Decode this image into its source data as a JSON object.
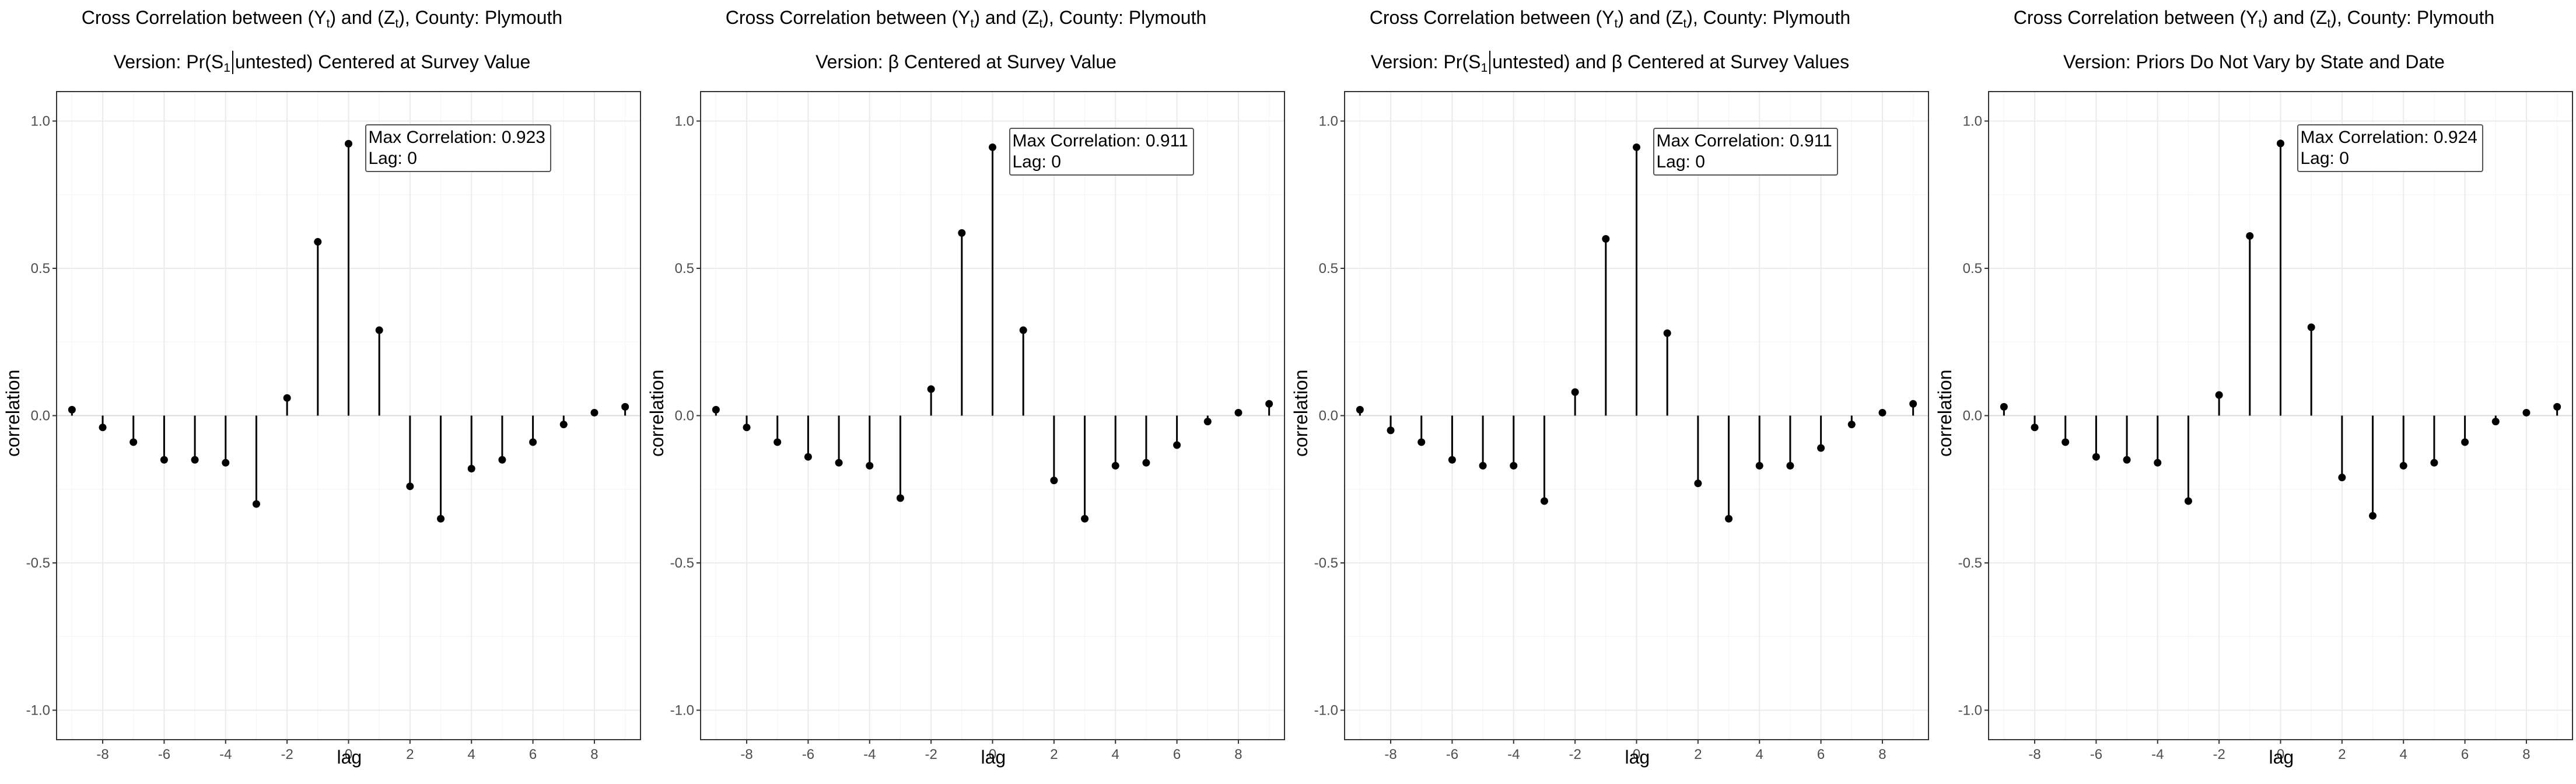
{
  "chart_data": [
    {
      "type": "lollipop",
      "title_parts": [
        "Cross Correlation between (Y",
        "t",
        ") and (Z",
        "t",
        "), County: Plymouth"
      ],
      "subtitle_parts": [
        "Version: Pr(S",
        "1",
        "untested) Centered at Survey Value"
      ],
      "xlabel": "lag",
      "ylabel": "correlation",
      "xlim": [
        -9.5,
        9.5
      ],
      "ylim": [
        -1.1,
        1.1
      ],
      "x_ticks": [
        "-8",
        "-6",
        "-4",
        "-2",
        "0",
        "2",
        "4",
        "6",
        "8"
      ],
      "y_ticks": [
        "-1.0",
        "-0.5",
        "0.0",
        "0.5",
        "1.0"
      ],
      "x": [
        -9,
        -8,
        -7,
        -6,
        -5,
        -4,
        -3,
        -2,
        -1,
        0,
        1,
        2,
        3,
        4,
        5,
        6,
        7,
        8,
        9
      ],
      "values": [
        0.02,
        -0.04,
        -0.09,
        -0.15,
        -0.15,
        -0.16,
        -0.3,
        0.06,
        0.59,
        0.923,
        0.29,
        -0.24,
        -0.35,
        -0.18,
        -0.15,
        -0.09,
        -0.03,
        0.01,
        0.03
      ],
      "annotation": {
        "line1": "Max Correlation: 0.923",
        "line2": "Lag: 0"
      }
    },
    {
      "type": "lollipop",
      "title_parts": [
        "Cross Correlation between (Y",
        "t",
        ") and (Z",
        "t",
        "), County: Plymouth"
      ],
      "subtitle_parts": [
        "Version: β Centered at Survey Value"
      ],
      "xlabel": "lag",
      "ylabel": "correlation",
      "xlim": [
        -9.5,
        9.5
      ],
      "ylim": [
        -1.1,
        1.1
      ],
      "x_ticks": [
        "-8",
        "-6",
        "-4",
        "-2",
        "0",
        "2",
        "4",
        "6",
        "8"
      ],
      "y_ticks": [
        "-1.0",
        "-0.5",
        "0.0",
        "0.5",
        "1.0"
      ],
      "x": [
        -9,
        -8,
        -7,
        -6,
        -5,
        -4,
        -3,
        -2,
        -1,
        0,
        1,
        2,
        3,
        4,
        5,
        6,
        7,
        8,
        9
      ],
      "values": [
        0.02,
        -0.04,
        -0.09,
        -0.14,
        -0.16,
        -0.17,
        -0.28,
        0.09,
        0.62,
        0.911,
        0.29,
        -0.22,
        -0.35,
        -0.17,
        -0.16,
        -0.1,
        -0.02,
        0.01,
        0.04
      ],
      "annotation": {
        "line1": "Max Correlation: 0.911",
        "line2": "Lag: 0"
      }
    },
    {
      "type": "lollipop",
      "title_parts": [
        "Cross Correlation between (Y",
        "t",
        ") and (Z",
        "t",
        "), County: Plymouth"
      ],
      "subtitle_parts": [
        "Version: Pr(S",
        "1",
        "untested) and β Centered at Survey Values"
      ],
      "xlabel": "lag",
      "ylabel": "correlation",
      "xlim": [
        -9.5,
        9.5
      ],
      "ylim": [
        -1.1,
        1.1
      ],
      "x_ticks": [
        "-8",
        "-6",
        "-4",
        "-2",
        "0",
        "2",
        "4",
        "6",
        "8"
      ],
      "y_ticks": [
        "-1.0",
        "-0.5",
        "0.0",
        "0.5",
        "1.0"
      ],
      "x": [
        -9,
        -8,
        -7,
        -6,
        -5,
        -4,
        -3,
        -2,
        -1,
        0,
        1,
        2,
        3,
        4,
        5,
        6,
        7,
        8,
        9
      ],
      "values": [
        0.02,
        -0.05,
        -0.09,
        -0.15,
        -0.17,
        -0.17,
        -0.29,
        0.08,
        0.6,
        0.911,
        0.28,
        -0.23,
        -0.35,
        -0.17,
        -0.17,
        -0.11,
        -0.03,
        0.01,
        0.04
      ],
      "annotation": {
        "line1": "Max Correlation: 0.911",
        "line2": "Lag: 0"
      }
    },
    {
      "type": "lollipop",
      "title_parts": [
        "Cross Correlation between (Y",
        "t",
        ") and (Z",
        "t",
        "), County: Plymouth"
      ],
      "subtitle_parts": [
        "Version: Priors Do Not Vary by State and Date"
      ],
      "xlabel": "lag",
      "ylabel": "correlation",
      "xlim": [
        -9.5,
        9.5
      ],
      "ylim": [
        -1.1,
        1.1
      ],
      "x_ticks": [
        "-8",
        "-6",
        "-4",
        "-2",
        "0",
        "2",
        "4",
        "6",
        "8"
      ],
      "y_ticks": [
        "-1.0",
        "-0.5",
        "0.0",
        "0.5",
        "1.0"
      ],
      "x": [
        -9,
        -8,
        -7,
        -6,
        -5,
        -4,
        -3,
        -2,
        -1,
        0,
        1,
        2,
        3,
        4,
        5,
        6,
        7,
        8,
        9
      ],
      "values": [
        0.03,
        -0.04,
        -0.09,
        -0.14,
        -0.15,
        -0.16,
        -0.29,
        0.07,
        0.61,
        0.924,
        0.3,
        -0.21,
        -0.34,
        -0.17,
        -0.16,
        -0.09,
        -0.02,
        0.01,
        0.03
      ],
      "annotation": {
        "line1": "Max Correlation: 0.924",
        "line2": "Lag: 0"
      }
    }
  ],
  "colors": {
    "stem": "#000000",
    "point": "#000000",
    "grid_major": "#ebebeb",
    "grid_minor": "#f5f5f5",
    "zero_line": "#d9d9d9",
    "panel_border": "#333333",
    "tick_label": "#4d4d4d"
  }
}
